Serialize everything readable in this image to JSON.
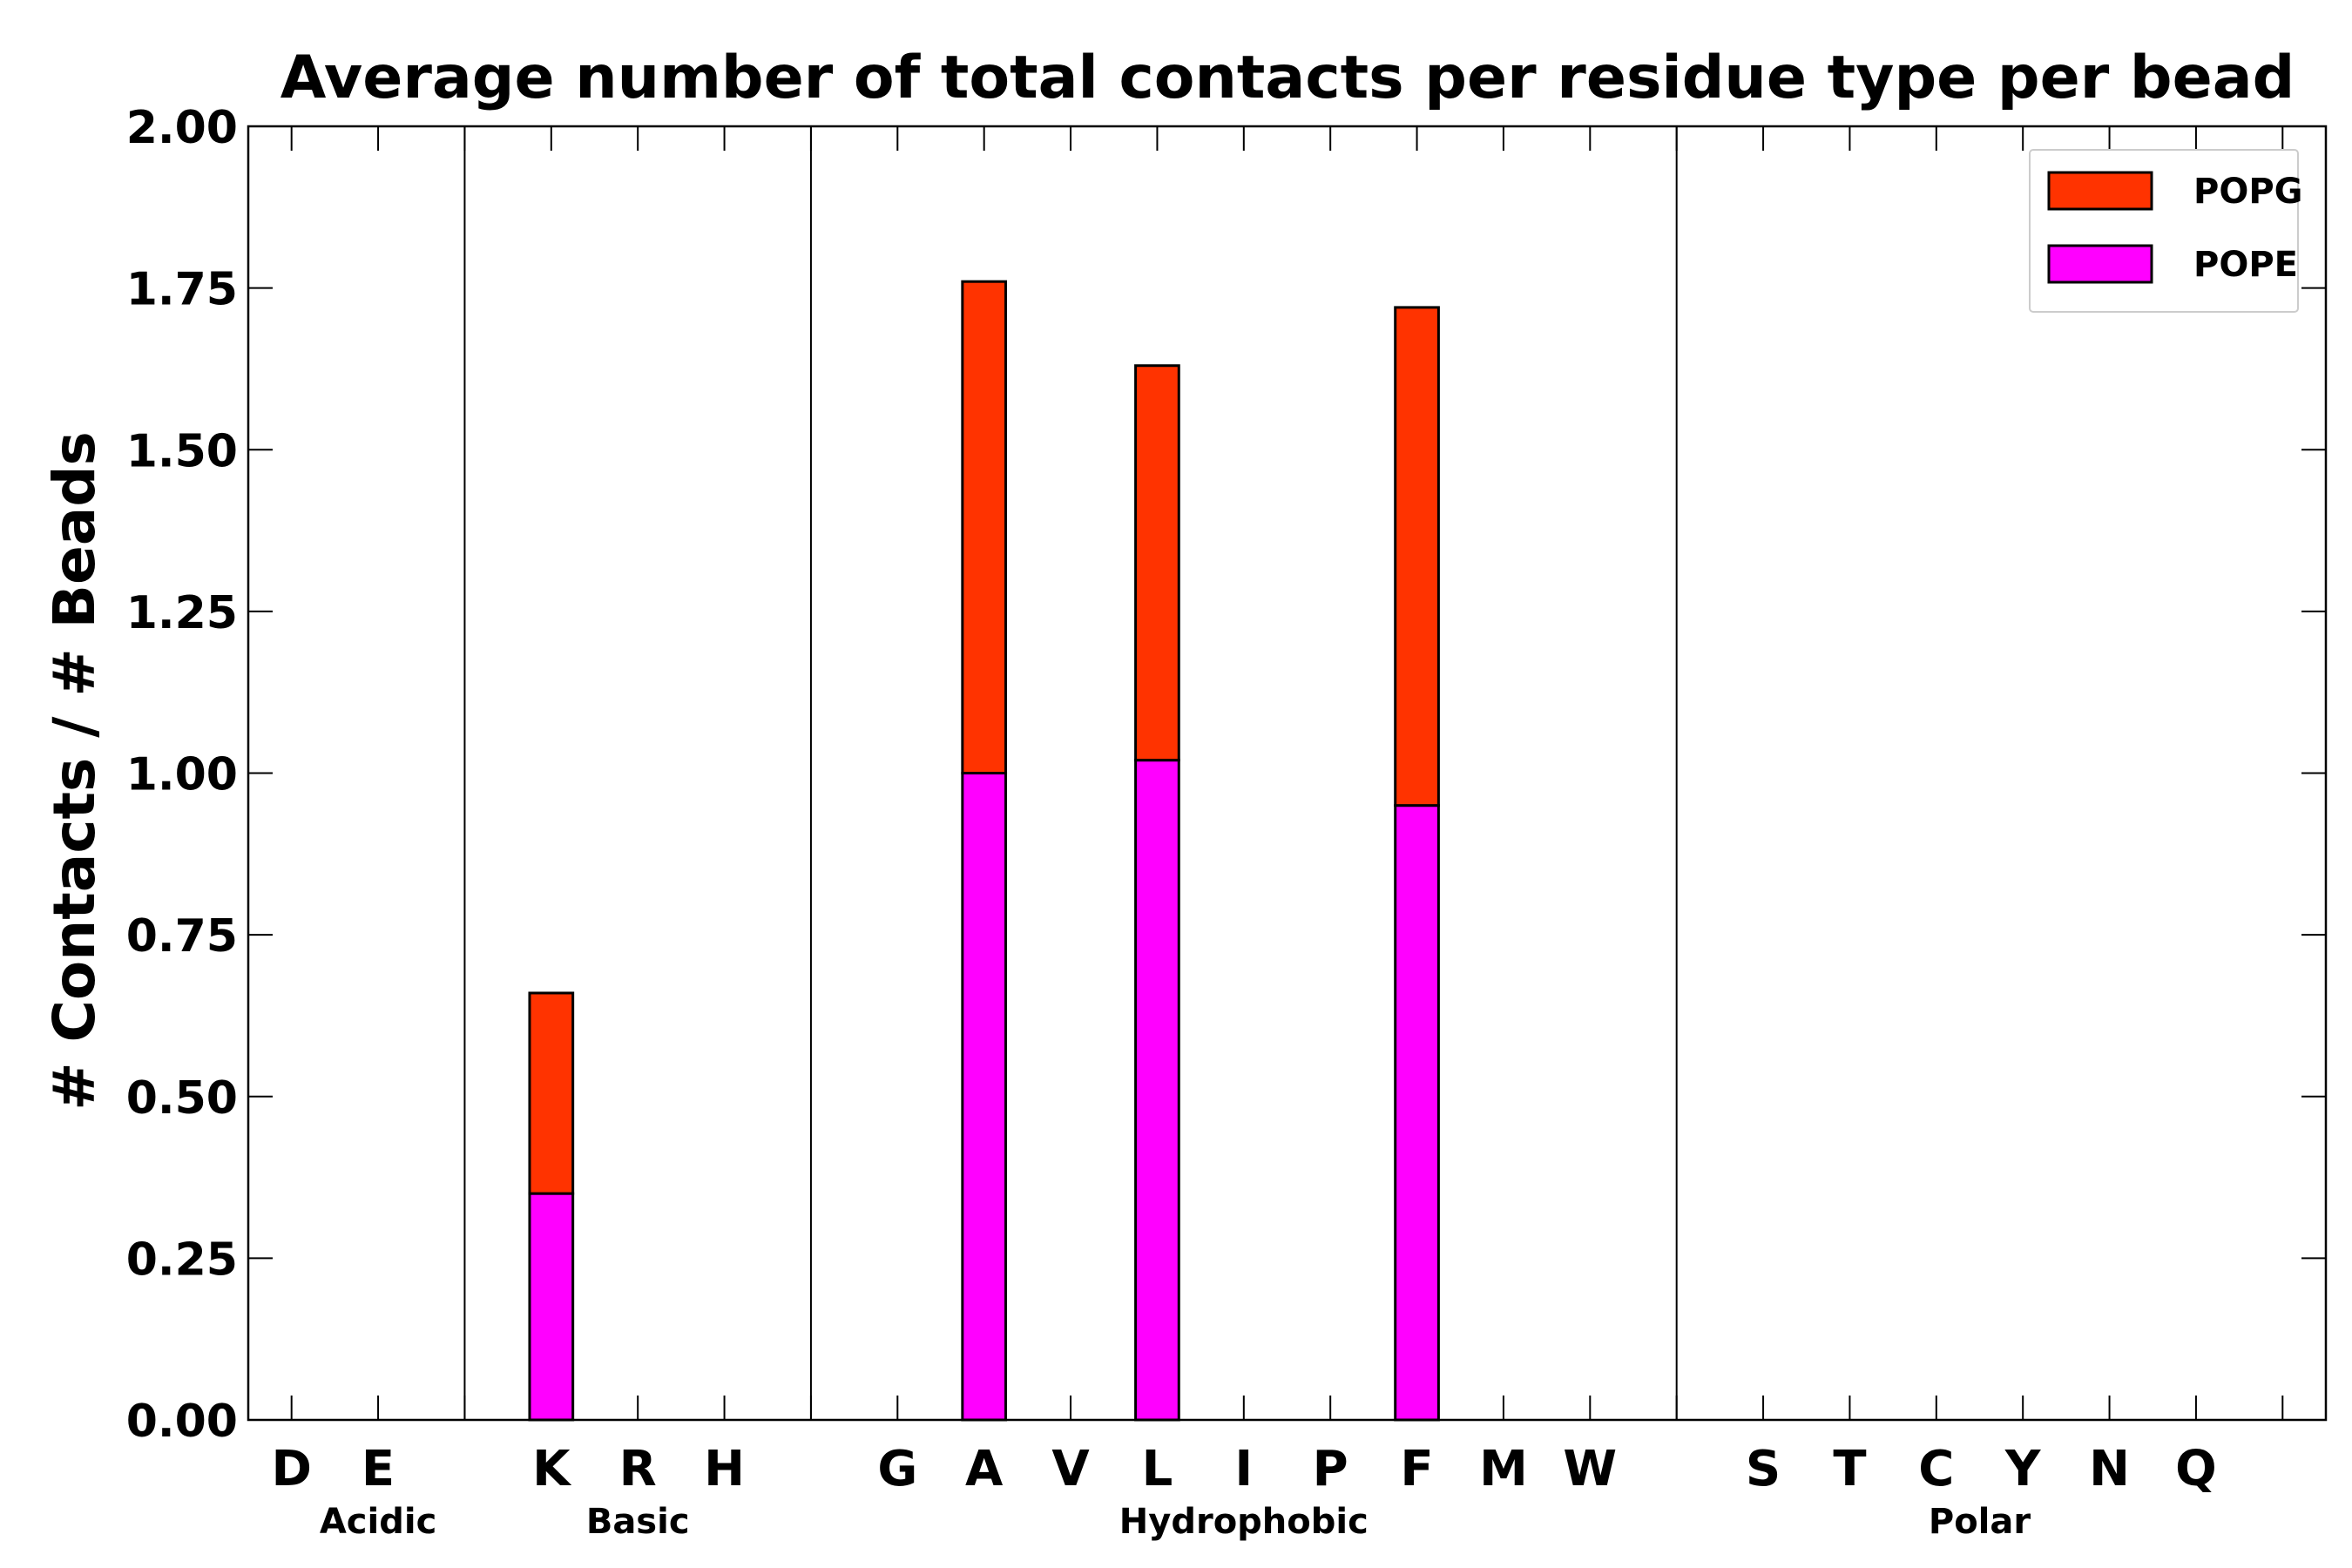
{
  "chart_data": {
    "type": "bar",
    "stacked": true,
    "title": "Average number of total contacts per residue type per bead",
    "xlabel": "",
    "ylabel": "# Contacts / # Beads",
    "ylim": [
      0,
      2.0
    ],
    "yticks": [
      "0.00",
      "0.25",
      "0.50",
      "0.75",
      "1.00",
      "1.25",
      "1.50",
      "1.75",
      "2.00"
    ],
    "grid": false,
    "legend_position": "top-right",
    "categories": [
      "D",
      "E",
      "",
      "K",
      "R",
      "H",
      "",
      "G",
      "A",
      "V",
      "L",
      "I",
      "P",
      "F",
      "M",
      "W",
      "",
      "S",
      "T",
      "C",
      "Y",
      "N",
      "Q",
      ""
    ],
    "series": [
      {
        "name": "POPE",
        "color": "#ff00ff",
        "values": [
          0,
          0,
          0,
          0.35,
          0,
          0,
          0,
          0,
          1.0,
          0,
          1.02,
          0,
          0,
          0.95,
          0,
          0,
          0,
          0,
          0,
          0,
          0,
          0,
          0,
          0
        ]
      },
      {
        "name": "POPG",
        "color": "#ff3300",
        "values": [
          0,
          0,
          0,
          0.31,
          0,
          0,
          0,
          0,
          0.76,
          0,
          0.61,
          0,
          0,
          0.77,
          0,
          0,
          0,
          0,
          0,
          0,
          0,
          0,
          0,
          0
        ]
      }
    ],
    "legend_order": [
      "POPG",
      "POPE"
    ],
    "groups": [
      {
        "label": "Acidic",
        "start": 0,
        "end": 2
      },
      {
        "label": "Basic",
        "start": 2,
        "end": 6
      },
      {
        "label": "Hydrophobic",
        "start": 6,
        "end": 16
      },
      {
        "label": "Polar",
        "start": 16,
        "end": 23
      }
    ],
    "dividers_after": [
      2,
      6,
      16
    ]
  }
}
